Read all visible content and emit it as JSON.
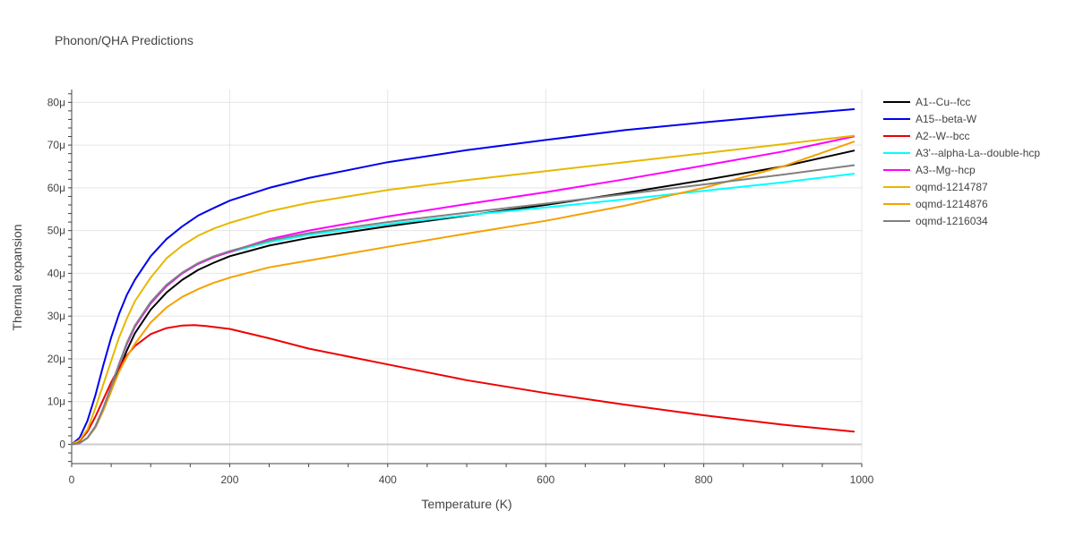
{
  "chart_data": {
    "type": "line",
    "title": "Phonon/QHA Predictions",
    "xlabel": "Temperature (K)",
    "ylabel": "Thermal expansion",
    "xlim": [
      0,
      1000
    ],
    "ylim": [
      -4.5e-06,
      8.3e-05
    ],
    "x_ticks": [
      0,
      200,
      400,
      600,
      800,
      1000
    ],
    "x_tick_labels": [
      "0",
      "200",
      "400",
      "600",
      "800",
      "1000"
    ],
    "y_ticks": [
      0,
      1e-05,
      2e-05,
      3e-05,
      4e-05,
      5e-05,
      6e-05,
      7e-05,
      8e-05
    ],
    "y_tick_labels": [
      "0",
      "10μ",
      "20μ",
      "30μ",
      "40μ",
      "50μ",
      "60μ",
      "70μ",
      "80μ"
    ],
    "grid": true,
    "legend_position": "right",
    "series": [
      {
        "name": "A1--Cu--fcc",
        "color": "#000000",
        "x": [
          0,
          10,
          20,
          30,
          40,
          50,
          60,
          70,
          80,
          100,
          120,
          140,
          160,
          180,
          200,
          250,
          300,
          400,
          500,
          600,
          700,
          800,
          900,
          990
        ],
        "y": [
          0,
          3e-07,
          1.5e-06,
          4e-06,
          8e-06,
          1.25e-05,
          1.75e-05,
          2.2e-05,
          2.6e-05,
          3.15e-05,
          3.55e-05,
          3.85e-05,
          4.08e-05,
          4.25e-05,
          4.4e-05,
          4.65e-05,
          4.83e-05,
          5.1e-05,
          5.35e-05,
          5.6e-05,
          5.88e-05,
          6.18e-05,
          6.5e-05,
          6.87e-05
        ]
      },
      {
        "name": "A15--beta-W",
        "color": "#0000ee",
        "x": [
          0,
          10,
          20,
          30,
          40,
          50,
          60,
          70,
          80,
          100,
          120,
          140,
          160,
          180,
          200,
          250,
          300,
          400,
          500,
          600,
          700,
          800,
          900,
          990
        ],
        "y": [
          0,
          1.5e-06,
          5.5e-06,
          1.15e-05,
          1.85e-05,
          2.5e-05,
          3.05e-05,
          3.5e-05,
          3.85e-05,
          4.4e-05,
          4.8e-05,
          5.1e-05,
          5.35e-05,
          5.53e-05,
          5.7e-05,
          6e-05,
          6.23e-05,
          6.6e-05,
          6.88e-05,
          7.12e-05,
          7.35e-05,
          7.53e-05,
          7.7e-05,
          7.84e-05
        ]
      },
      {
        "name": "A2--W--bcc",
        "color": "#ee0000",
        "x": [
          0,
          10,
          20,
          30,
          40,
          50,
          60,
          70,
          80,
          100,
          120,
          140,
          155,
          170,
          200,
          250,
          300,
          400,
          500,
          600,
          700,
          800,
          900,
          990
        ],
        "y": [
          0,
          8e-07,
          3e-06,
          6.5e-06,
          1.05e-05,
          1.45e-05,
          1.8e-05,
          2.08e-05,
          2.3e-05,
          2.58e-05,
          2.72e-05,
          2.78e-05,
          2.79e-05,
          2.77e-05,
          2.7e-05,
          2.48e-05,
          2.24e-05,
          1.87e-05,
          1.5e-05,
          1.2e-05,
          9.3e-06,
          6.8e-06,
          4.6e-06,
          3e-06
        ]
      },
      {
        "name": "A3'--alpha-La--double-hcp",
        "color": "#00ffff",
        "x": [
          0,
          10,
          20,
          30,
          40,
          50,
          60,
          70,
          80,
          100,
          120,
          140,
          160,
          180,
          200,
          250,
          300,
          400,
          500,
          600,
          700,
          800,
          900,
          990
        ],
        "y": [
          0,
          3e-07,
          1.5e-06,
          4.2e-06,
          8.5e-06,
          1.35e-05,
          1.88e-05,
          2.35e-05,
          2.75e-05,
          3.3e-05,
          3.7e-05,
          4e-05,
          4.22e-05,
          4.38e-05,
          4.5e-05,
          4.73e-05,
          4.9e-05,
          5.15e-05,
          5.36e-05,
          5.54e-05,
          5.73e-05,
          5.93e-05,
          6.13e-05,
          6.33e-05
        ]
      },
      {
        "name": "A3--Mg--hcp",
        "color": "#ff00ff",
        "x": [
          0,
          10,
          20,
          30,
          40,
          50,
          60,
          70,
          80,
          100,
          120,
          140,
          160,
          180,
          200,
          250,
          300,
          400,
          500,
          600,
          700,
          800,
          900,
          990
        ],
        "y": [
          0,
          3e-07,
          1.5e-06,
          4.2e-06,
          8.5e-06,
          1.35e-05,
          1.88e-05,
          2.35e-05,
          2.75e-05,
          3.3e-05,
          3.7e-05,
          4e-05,
          4.22e-05,
          4.38e-05,
          4.5e-05,
          4.8e-05,
          5e-05,
          5.33e-05,
          5.62e-05,
          5.9e-05,
          6.2e-05,
          6.52e-05,
          6.85e-05,
          7.2e-05
        ]
      },
      {
        "name": "oqmd-1214787",
        "color": "#e6b800",
        "x": [
          0,
          10,
          20,
          30,
          40,
          50,
          60,
          70,
          80,
          100,
          120,
          140,
          160,
          180,
          200,
          250,
          300,
          400,
          500,
          600,
          700,
          800,
          900,
          990
        ],
        "y": [
          0,
          1e-06,
          3.5e-06,
          8.5e-06,
          1.4e-05,
          1.95e-05,
          2.5e-05,
          2.95e-05,
          3.35e-05,
          3.9e-05,
          4.35e-05,
          4.65e-05,
          4.88e-05,
          5.05e-05,
          5.18e-05,
          5.45e-05,
          5.65e-05,
          5.95e-05,
          6.18e-05,
          6.39e-05,
          6.6e-05,
          6.81e-05,
          7.02e-05,
          7.22e-05
        ]
      },
      {
        "name": "oqmd-1214876",
        "color": "#f5a100",
        "x": [
          0,
          10,
          20,
          30,
          40,
          50,
          60,
          70,
          80,
          100,
          120,
          140,
          160,
          180,
          200,
          250,
          300,
          400,
          500,
          600,
          700,
          800,
          900,
          990
        ],
        "y": [
          0,
          3e-07,
          1.5e-06,
          4e-06,
          8e-06,
          1.25e-05,
          1.7e-05,
          2.05e-05,
          2.35e-05,
          2.85e-05,
          3.2e-05,
          3.45e-05,
          3.63e-05,
          3.78e-05,
          3.9e-05,
          4.14e-05,
          4.3e-05,
          4.62e-05,
          4.93e-05,
          5.23e-05,
          5.58e-05,
          6e-05,
          6.5e-05,
          7.08e-05
        ]
      },
      {
        "name": "oqmd-1216034",
        "color": "#808080",
        "x": [
          0,
          10,
          20,
          30,
          40,
          50,
          60,
          70,
          80,
          100,
          120,
          140,
          160,
          180,
          200,
          250,
          300,
          400,
          500,
          600,
          700,
          800,
          900,
          990
        ],
        "y": [
          0,
          3e-07,
          1.5e-06,
          4.2e-06,
          8.5e-06,
          1.35e-05,
          1.88e-05,
          2.38e-05,
          2.78e-05,
          3.33e-05,
          3.73e-05,
          4.02e-05,
          4.24e-05,
          4.4e-05,
          4.52e-05,
          4.77e-05,
          4.94e-05,
          5.2e-05,
          5.42e-05,
          5.63e-05,
          5.85e-05,
          6.08e-05,
          6.31e-05,
          6.53e-05
        ]
      }
    ]
  }
}
